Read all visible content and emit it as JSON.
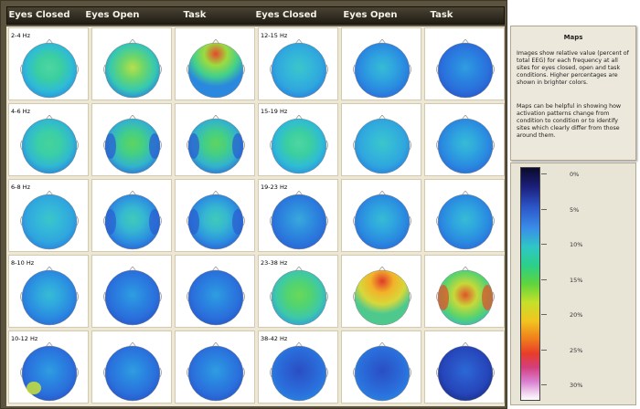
{
  "header": {
    "columns": [
      "Eyes Closed",
      "Eyes Open",
      "Task",
      "Eyes Closed",
      "Eyes Open",
      "Task"
    ]
  },
  "left_bands": [
    "2-4 Hz",
    "4-6 Hz",
    "6-8 Hz",
    "8-10 Hz",
    "10-12 Hz"
  ],
  "right_bands": [
    "12-15 Hz",
    "15-19 Hz",
    "19-23 Hz",
    "23-38 Hz",
    "38-42 Hz"
  ],
  "maps": [
    [
      "green-cyan",
      "green-yellow",
      "green-red-top"
    ],
    [
      "cyan-green",
      "green-blue-sides",
      "green-blue-sides"
    ],
    [
      "cyan",
      "cyan-blue-sides",
      "cyan-blue-sides"
    ],
    [
      "cyan-blue",
      "blue",
      "blue"
    ],
    [
      "blue-yellow-spot",
      "blue",
      "blue"
    ],
    [
      "cyan",
      "cyan-blue",
      "blue"
    ],
    [
      "green-cyan",
      "cyan",
      "cyan-blue"
    ],
    [
      "blue-cyan",
      "cyan-blue",
      "cyan-blue"
    ],
    [
      "green",
      "yellow-red-top",
      "green-red-sides"
    ],
    [
      "dark-blue",
      "dark-blue",
      "blue-dark"
    ]
  ],
  "info": {
    "title": "Maps",
    "paragraph1": "Images show relative value (percent of total EEG) for each frequency at all sites for eyes closed, open and task conditions. Higher percentages are shown in brighter colors.",
    "paragraph2": "Maps can be helpful in showing how activation patterns change from condition to condition or to identify sites which clearly differ from those around them."
  },
  "legend": {
    "ticks": [
      "0%",
      "5%",
      "10%",
      "15%",
      "20%",
      "25%",
      "30%"
    ]
  },
  "colors": {
    "frame": "#5c533f",
    "header_bar": "#2b261c",
    "cell_bg": "#ffffff",
    "grid_bg": "#ede7d5"
  }
}
